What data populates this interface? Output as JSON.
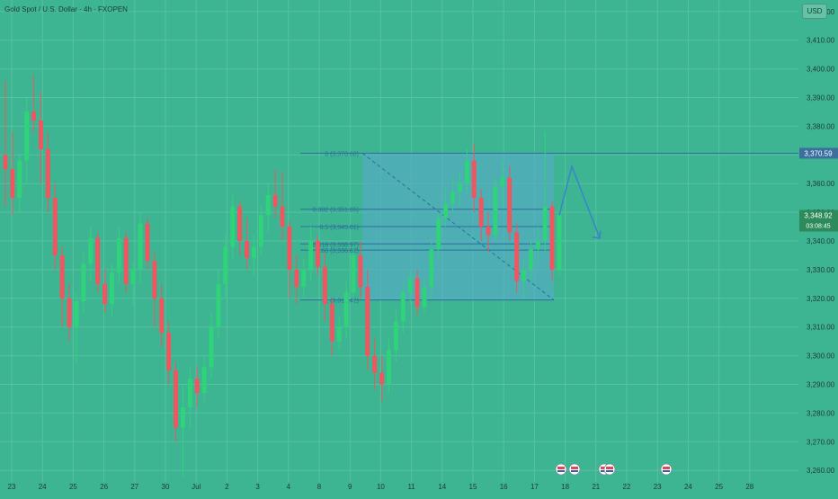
{
  "header": {
    "title": "Gold Spot / U.S. Dollar · 4h · FXOPEN",
    "currency": "USD"
  },
  "colors": {
    "background": "#3eb592",
    "up": "#2fd47a",
    "down": "#f05560",
    "fib_zone": "#5aa8cf",
    "fib_line": "#2d6f9e",
    "arrow": "#3a86c9",
    "axis_text": "#1e3a34"
  },
  "chart_data": {
    "type": "candlestick",
    "ylim": [
      3256,
      3424
    ],
    "y_ticks": [
      {
        "value": 3260,
        "label": "3,260.00"
      },
      {
        "value": 3270,
        "label": "3,270.00"
      },
      {
        "value": 3280,
        "label": "3,280.00"
      },
      {
        "value": 3290,
        "label": "3,290.00"
      },
      {
        "value": 3300,
        "label": "3,300.00"
      },
      {
        "value": 3310,
        "label": "3,310.00"
      },
      {
        "value": 3320,
        "label": "3,320.00"
      },
      {
        "value": 3330,
        "label": "3,330.00"
      },
      {
        "value": 3340,
        "label": "3,340.00"
      },
      {
        "value": 3350,
        "label": "3,350.00"
      },
      {
        "value": 3360,
        "label": "3,360.00"
      },
      {
        "value": 3370,
        "label": "3,370.00"
      },
      {
        "value": 3380,
        "label": "3,380.00"
      },
      {
        "value": 3390,
        "label": "3,390.00"
      },
      {
        "value": 3400,
        "label": "3,400.00"
      },
      {
        "value": 3410,
        "label": "3,410.00"
      },
      {
        "value": 3420,
        "label": "3,420.00"
      }
    ],
    "x_ticks": [
      "23",
      "24",
      "25",
      "26",
      "27",
      "30",
      "Jul",
      "2",
      "3",
      "4",
      "8",
      "9",
      "10",
      "11",
      "14",
      "15",
      "16",
      "17",
      "18",
      "21",
      "22",
      "23",
      "24",
      "25",
      "28"
    ],
    "candles": [
      [
        3370,
        3396,
        3352,
        3365
      ],
      [
        3365,
        3378,
        3349,
        3355
      ],
      [
        3355,
        3370,
        3350,
        3368
      ],
      [
        3368,
        3390,
        3360,
        3385
      ],
      [
        3385,
        3398,
        3378,
        3382
      ],
      [
        3382,
        3392,
        3360,
        3372
      ],
      [
        3372,
        3378,
        3350,
        3355
      ],
      [
        3355,
        3360,
        3330,
        3335
      ],
      [
        3335,
        3338,
        3310,
        3320
      ],
      [
        3320,
        3325,
        3305,
        3310
      ],
      [
        3310,
        3322,
        3297,
        3319
      ],
      [
        3319,
        3336,
        3315,
        3332
      ],
      [
        3332,
        3345,
        3326,
        3341
      ],
      [
        3341,
        3343,
        3322,
        3325
      ],
      [
        3325,
        3330,
        3315,
        3318
      ],
      [
        3318,
        3332,
        3314,
        3329
      ],
      [
        3329,
        3345,
        3325,
        3341
      ],
      [
        3341,
        3343,
        3322,
        3325
      ],
      [
        3325,
        3332,
        3318,
        3330
      ],
      [
        3330,
        3350,
        3325,
        3346
      ],
      [
        3346,
        3348,
        3330,
        3333
      ],
      [
        3333,
        3336,
        3310,
        3320
      ],
      [
        3320,
        3325,
        3303,
        3308
      ],
      [
        3308,
        3312,
        3290,
        3295
      ],
      [
        3295,
        3298,
        3270,
        3275
      ],
      [
        3275,
        3290,
        3258,
        3282
      ],
      [
        3282,
        3296,
        3275,
        3292
      ],
      [
        3292,
        3296,
        3282,
        3287
      ],
      [
        3287,
        3300,
        3284,
        3296
      ],
      [
        3296,
        3315,
        3292,
        3310
      ],
      [
        3310,
        3330,
        3306,
        3325
      ],
      [
        3325,
        3342,
        3320,
        3338
      ],
      [
        3338,
        3356,
        3334,
        3352
      ],
      [
        3352,
        3354,
        3335,
        3340
      ],
      [
        3340,
        3348,
        3330,
        3334
      ],
      [
        3334,
        3342,
        3328,
        3338
      ],
      [
        3338,
        3352,
        3335,
        3349
      ],
      [
        3349,
        3360,
        3343,
        3356
      ],
      [
        3356,
        3365,
        3348,
        3352
      ],
      [
        3352,
        3364,
        3340,
        3345
      ],
      [
        3345,
        3347,
        3320,
        3330
      ],
      [
        3330,
        3335,
        3318,
        3324
      ],
      [
        3324,
        3334,
        3320,
        3330
      ],
      [
        3330,
        3345,
        3326,
        3340
      ],
      [
        3340,
        3342,
        3328,
        3331
      ],
      [
        3331,
        3336,
        3312,
        3318
      ],
      [
        3318,
        3320,
        3300,
        3305
      ],
      [
        3305,
        3314,
        3302,
        3310
      ],
      [
        3310,
        3326,
        3306,
        3322
      ],
      [
        3322,
        3338,
        3318,
        3335
      ],
      [
        3335,
        3340,
        3320,
        3324
      ],
      [
        3324,
        3330,
        3295,
        3300
      ],
      [
        3300,
        3306,
        3288,
        3294
      ],
      [
        3294,
        3300,
        3284,
        3290
      ],
      [
        3290,
        3306,
        3287,
        3302
      ],
      [
        3302,
        3316,
        3298,
        3312
      ],
      [
        3312,
        3325,
        3308,
        3322
      ],
      [
        3322,
        3330,
        3318,
        3327
      ],
      [
        3327,
        3330,
        3314,
        3317
      ],
      [
        3317,
        3327,
        3315,
        3324
      ],
      [
        3324,
        3340,
        3320,
        3337
      ],
      [
        3337,
        3350,
        3334,
        3348
      ],
      [
        3348,
        3358,
        3345,
        3353
      ],
      [
        3353,
        3362,
        3350,
        3357
      ],
      [
        3357,
        3364,
        3352,
        3360
      ],
      [
        3360,
        3372,
        3356,
        3368
      ],
      [
        3368,
        3374,
        3350,
        3355
      ],
      [
        3355,
        3358,
        3340,
        3345
      ],
      [
        3345,
        3350,
        3336,
        3342
      ],
      [
        3342,
        3362,
        3340,
        3359
      ],
      [
        3359,
        3368,
        3352,
        3362
      ],
      [
        3362,
        3366,
        3340,
        3343
      ],
      [
        3343,
        3346,
        3322,
        3326
      ],
      [
        3326,
        3334,
        3320,
        3330
      ],
      [
        3330,
        3340,
        3326,
        3337
      ],
      [
        3337,
        3345,
        3332,
        3340
      ],
      [
        3340,
        3378,
        3336,
        3352
      ],
      [
        3352,
        3354,
        3326,
        3330
      ],
      [
        3330,
        3352,
        3328,
        3349
      ]
    ],
    "fib_levels": [
      {
        "ratio": "0",
        "price": 3370.6,
        "label": "0 (3,370.60)"
      },
      {
        "ratio": "0.382",
        "price": 3351.05,
        "label": "0.382 (3,351.05)"
      },
      {
        "ratio": "0.5",
        "price": 3345.01,
        "label": "0.5 (3,345.01)"
      },
      {
        "ratio": "0.618",
        "price": 3338.97,
        "label": "0.618 (3,338.97)"
      },
      {
        "ratio": "0.66",
        "price": 3336.82,
        "label": "0.66 (3,336.82)"
      },
      {
        "ratio": "1",
        "price": 3319.42,
        "label": "1 (3,319.42)"
      }
    ],
    "price_labels": [
      {
        "name": "resistance-line-label",
        "price": 3370.59,
        "text": "3,370.59"
      },
      {
        "name": "current-price-label",
        "price": 3348.92,
        "text": "3,348.92",
        "countdown": "03:08:45"
      }
    ],
    "projection": {
      "prices": [
        3349,
        3366,
        3341
      ]
    }
  }
}
